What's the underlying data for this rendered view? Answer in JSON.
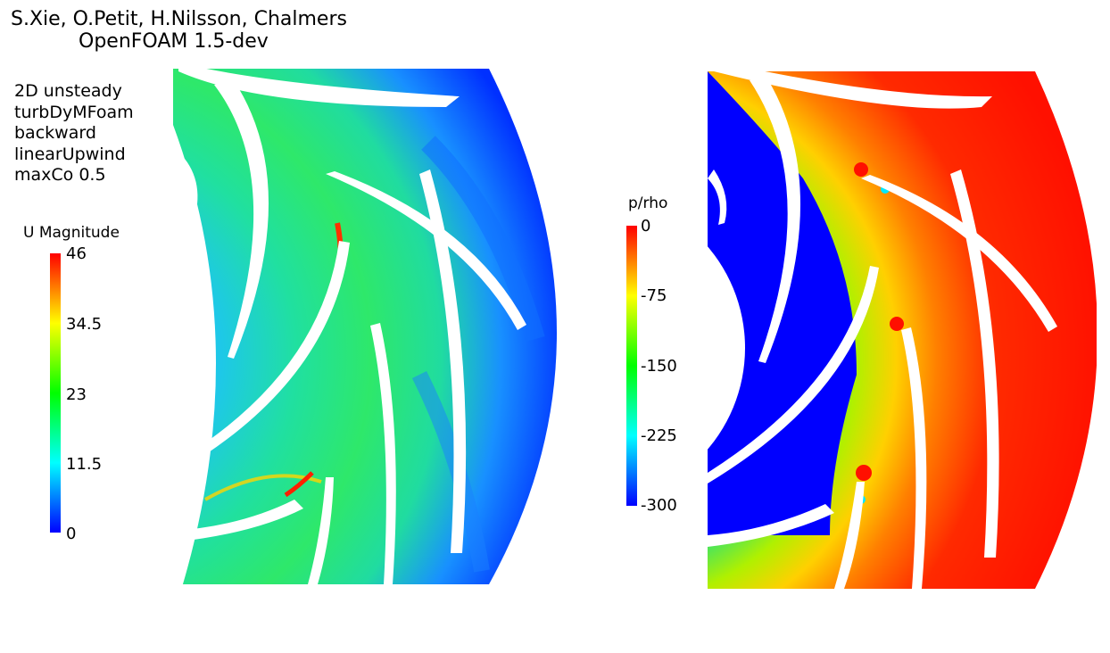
{
  "header": {
    "credits": "S.Xie, O.Petit, H.Nilsson, Chalmers",
    "software": "OpenFOAM 1.5-dev"
  },
  "settings": [
    "2D unsteady",
    "turbDyMFoam",
    "backward",
    "linearUpwind",
    "maxCo 0.5"
  ],
  "velocity_legend": {
    "title": "U Magnitude",
    "ticks": [
      "46",
      "34.5",
      "23",
      "11.5",
      "0"
    ],
    "colormap": [
      "#ff0000",
      "#ffff00",
      "#00ff00",
      "#00ffff",
      "#0000ff"
    ]
  },
  "pressure_legend": {
    "title": "p/rho",
    "ticks": [
      "0",
      "-75",
      "-150",
      "-225",
      "-300"
    ],
    "colormap": [
      "#ff0000",
      "#ffff00",
      "#00ff00",
      "#00ffff",
      "#0000ff"
    ]
  },
  "colors": {
    "velocity_base": "#22e07a",
    "velocity_low": "#19b8e8",
    "pressure_low": "#0000ff",
    "pressure_high": "#ff1a00",
    "blade": "#ffffff"
  }
}
